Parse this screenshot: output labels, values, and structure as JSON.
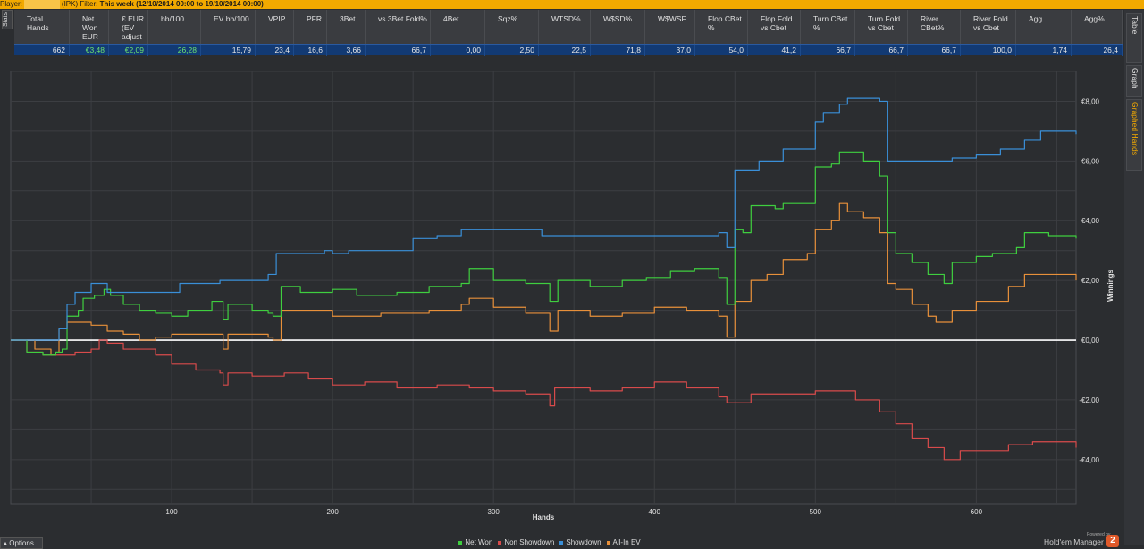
{
  "topbar": {
    "player_label": "Player:",
    "player_suffix": "(IPK)",
    "filter_label": "Filter:",
    "filter_value": "This week (12/10/2014 00:00 to 19/10/2014 00:00)"
  },
  "left_tab": {
    "label": "Stats"
  },
  "stats_table": {
    "columns": [
      {
        "label": "Total Hands",
        "value": "662"
      },
      {
        "label": "Net Won EUR",
        "value": "€3,48",
        "highlight": true
      },
      {
        "label": "€ EUR (EV adjust",
        "value": "€2,09",
        "highlight": true
      },
      {
        "label": "bb/100",
        "value": "26,28",
        "highlight": true
      },
      {
        "label": "EV bb/100",
        "value": "15,79"
      },
      {
        "label": "VPIP",
        "value": "23,4"
      },
      {
        "label": "PFR",
        "value": "16,6"
      },
      {
        "label": "3Bet",
        "value": "3,66"
      },
      {
        "label": "vs 3Bet Fold%",
        "value": "66,7"
      },
      {
        "label": "4Bet",
        "value": "0,00"
      },
      {
        "label": "Sqz%",
        "value": "2,50"
      },
      {
        "label": "WTSD%",
        "value": "22,5"
      },
      {
        "label": "W$SD%",
        "value": "71,8"
      },
      {
        "label": "W$WSF",
        "value": "37,0"
      },
      {
        "label": "Flop CBet %",
        "value": "54,0"
      },
      {
        "label": "Flop Fold vs Cbet",
        "value": "41,2"
      },
      {
        "label": "Turn CBet %",
        "value": "66,7"
      },
      {
        "label": "Turn Fold vs Cbet",
        "value": "66,7"
      },
      {
        "label": "River CBet%",
        "value": "66,7"
      },
      {
        "label": "River Fold vs Cbet",
        "value": "100,0"
      },
      {
        "label": "Agg",
        "value": "1,74"
      },
      {
        "label": "Agg%",
        "value": "26,4"
      }
    ]
  },
  "right_tabs": [
    {
      "label": "Table",
      "active": false
    },
    {
      "label": "Graph",
      "active": false
    },
    {
      "label": "Graphed Hands",
      "active": true
    }
  ],
  "footer": {
    "options_label": "Options",
    "powered_by": "Powered by",
    "brand_name": "Hold'em Manager",
    "brand_badge": "2"
  },
  "colors": {
    "net_won": "#3fcf3f",
    "non_showdown": "#d94b4b",
    "showdown": "#3a8fd8",
    "allin_ev": "#e8903a",
    "topbar": "#f2a900"
  },
  "chart_data": {
    "type": "line",
    "xlabel": "Hands",
    "ylabel": "Winnings",
    "xlim": [
      0,
      662
    ],
    "ylim": [
      -5.5,
      9
    ],
    "x_ticks": [
      100,
      200,
      300,
      400,
      500,
      600
    ],
    "y_ticks": [
      -4,
      -2,
      0,
      2,
      4,
      6,
      8
    ],
    "y_tick_labels": [
      "-€4,00",
      "-€2,00",
      "€0,00",
      "€2,00",
      "€4,00",
      "€6,00",
      "€8,00"
    ],
    "series": [
      {
        "name": "Net Won",
        "color": "#3fcf3f",
        "points": [
          [
            0,
            0
          ],
          [
            10,
            -0.4
          ],
          [
            20,
            -0.5
          ],
          [
            25,
            -0.5
          ],
          [
            28,
            -0.4
          ],
          [
            32,
            -0.3
          ],
          [
            35,
            0.8
          ],
          [
            42,
            1.0
          ],
          [
            45,
            1.4
          ],
          [
            52,
            1.5
          ],
          [
            58,
            1.7
          ],
          [
            62,
            1.5
          ],
          [
            70,
            1.2
          ],
          [
            80,
            1.0
          ],
          [
            90,
            0.9
          ],
          [
            100,
            0.8
          ],
          [
            110,
            1.0
          ],
          [
            125,
            1.3
          ],
          [
            132,
            0.7
          ],
          [
            135,
            1.2
          ],
          [
            150,
            1.0
          ],
          [
            160,
            0.9
          ],
          [
            163,
            0.8
          ],
          [
            168,
            1.8
          ],
          [
            180,
            1.6
          ],
          [
            200,
            1.7
          ],
          [
            215,
            1.5
          ],
          [
            240,
            1.6
          ],
          [
            260,
            1.8
          ],
          [
            280,
            1.9
          ],
          [
            285,
            2.4
          ],
          [
            300,
            2.0
          ],
          [
            320,
            1.9
          ],
          [
            335,
            1.3
          ],
          [
            340,
            2.0
          ],
          [
            360,
            1.8
          ],
          [
            380,
            2.0
          ],
          [
            395,
            2.1
          ],
          [
            410,
            2.3
          ],
          [
            425,
            2.4
          ],
          [
            440,
            2.1
          ],
          [
            445,
            1.2
          ],
          [
            450,
            3.7
          ],
          [
            455,
            3.6
          ],
          [
            460,
            4.5
          ],
          [
            475,
            4.4
          ],
          [
            480,
            4.6
          ],
          [
            495,
            4.6
          ],
          [
            500,
            5.8
          ],
          [
            510,
            5.9
          ],
          [
            515,
            6.3
          ],
          [
            530,
            6.0
          ],
          [
            540,
            5.5
          ],
          [
            545,
            3.6
          ],
          [
            550,
            2.9
          ],
          [
            560,
            2.6
          ],
          [
            570,
            2.2
          ],
          [
            580,
            1.9
          ],
          [
            585,
            2.6
          ],
          [
            600,
            2.8
          ],
          [
            610,
            2.9
          ],
          [
            625,
            3.1
          ],
          [
            630,
            3.6
          ],
          [
            645,
            3.5
          ],
          [
            662,
            3.4
          ]
        ]
      },
      {
        "name": "Non Showdown",
        "color": "#d94b4b",
        "points": [
          [
            0,
            0
          ],
          [
            10,
            -0.4
          ],
          [
            20,
            -0.5
          ],
          [
            30,
            -0.5
          ],
          [
            40,
            -0.4
          ],
          [
            50,
            -0.3
          ],
          [
            55,
            0.0
          ],
          [
            60,
            -0.1
          ],
          [
            70,
            -0.3
          ],
          [
            80,
            -0.3
          ],
          [
            90,
            -0.5
          ],
          [
            100,
            -0.8
          ],
          [
            115,
            -1.0
          ],
          [
            130,
            -1.1
          ],
          [
            132,
            -1.5
          ],
          [
            135,
            -1.1
          ],
          [
            150,
            -1.2
          ],
          [
            170,
            -1.1
          ],
          [
            185,
            -1.3
          ],
          [
            200,
            -1.5
          ],
          [
            220,
            -1.4
          ],
          [
            240,
            -1.6
          ],
          [
            265,
            -1.5
          ],
          [
            285,
            -1.6
          ],
          [
            300,
            -1.7
          ],
          [
            320,
            -1.8
          ],
          [
            335,
            -2.2
          ],
          [
            338,
            -1.6
          ],
          [
            360,
            -1.7
          ],
          [
            380,
            -1.6
          ],
          [
            400,
            -1.4
          ],
          [
            420,
            -1.6
          ],
          [
            440,
            -1.9
          ],
          [
            445,
            -2.1
          ],
          [
            460,
            -1.8
          ],
          [
            480,
            -1.8
          ],
          [
            500,
            -1.7
          ],
          [
            510,
            -1.7
          ],
          [
            525,
            -2.0
          ],
          [
            540,
            -2.4
          ],
          [
            550,
            -2.8
          ],
          [
            560,
            -3.3
          ],
          [
            570,
            -3.6
          ],
          [
            580,
            -4.0
          ],
          [
            590,
            -3.7
          ],
          [
            600,
            -3.7
          ],
          [
            620,
            -3.5
          ],
          [
            635,
            -3.4
          ],
          [
            650,
            -3.4
          ],
          [
            662,
            -3.6
          ]
        ]
      },
      {
        "name": "Showdown",
        "color": "#3a8fd8",
        "points": [
          [
            0,
            0
          ],
          [
            20,
            0
          ],
          [
            25,
            0
          ],
          [
            28,
            0.0
          ],
          [
            30,
            0.4
          ],
          [
            35,
            1.2
          ],
          [
            40,
            1.6
          ],
          [
            45,
            1.6
          ],
          [
            50,
            1.9
          ],
          [
            60,
            1.6
          ],
          [
            100,
            1.6
          ],
          [
            105,
            1.9
          ],
          [
            130,
            2.0
          ],
          [
            160,
            2.2
          ],
          [
            165,
            2.9
          ],
          [
            195,
            3.0
          ],
          [
            200,
            2.9
          ],
          [
            210,
            3.0
          ],
          [
            250,
            3.4
          ],
          [
            265,
            3.5
          ],
          [
            280,
            3.7
          ],
          [
            300,
            3.7
          ],
          [
            330,
            3.5
          ],
          [
            400,
            3.5
          ],
          [
            440,
            3.6
          ],
          [
            445,
            3.1
          ],
          [
            450,
            5.7
          ],
          [
            465,
            6.0
          ],
          [
            480,
            6.4
          ],
          [
            500,
            7.3
          ],
          [
            505,
            7.6
          ],
          [
            515,
            7.9
          ],
          [
            520,
            8.1
          ],
          [
            540,
            8.0
          ],
          [
            545,
            6.0
          ],
          [
            570,
            6.0
          ],
          [
            585,
            6.1
          ],
          [
            600,
            6.2
          ],
          [
            615,
            6.4
          ],
          [
            630,
            6.7
          ],
          [
            640,
            7.0
          ],
          [
            650,
            7.0
          ],
          [
            662,
            6.9
          ]
        ]
      },
      {
        "name": "All-In EV",
        "color": "#e8903a",
        "points": [
          [
            0,
            0
          ],
          [
            15,
            -0.3
          ],
          [
            25,
            -0.5
          ],
          [
            28,
            -0.4
          ],
          [
            30,
            0.4
          ],
          [
            35,
            0.6
          ],
          [
            50,
            0.5
          ],
          [
            60,
            0.3
          ],
          [
            70,
            0.2
          ],
          [
            80,
            0.0
          ],
          [
            90,
            0.1
          ],
          [
            100,
            0.2
          ],
          [
            125,
            0.2
          ],
          [
            132,
            -0.3
          ],
          [
            135,
            0.2
          ],
          [
            160,
            0.1
          ],
          [
            163,
            0.0
          ],
          [
            168,
            1.0
          ],
          [
            200,
            0.8
          ],
          [
            230,
            0.9
          ],
          [
            260,
            1.0
          ],
          [
            280,
            1.2
          ],
          [
            285,
            1.4
          ],
          [
            300,
            1.1
          ],
          [
            320,
            0.9
          ],
          [
            335,
            0.3
          ],
          [
            340,
            1.0
          ],
          [
            360,
            0.8
          ],
          [
            380,
            0.9
          ],
          [
            400,
            1.1
          ],
          [
            420,
            1.0
          ],
          [
            440,
            0.8
          ],
          [
            445,
            0.1
          ],
          [
            450,
            1.3
          ],
          [
            460,
            2.0
          ],
          [
            470,
            2.2
          ],
          [
            480,
            2.7
          ],
          [
            495,
            2.9
          ],
          [
            500,
            3.7
          ],
          [
            510,
            4.0
          ],
          [
            515,
            4.6
          ],
          [
            520,
            4.3
          ],
          [
            530,
            4.1
          ],
          [
            540,
            3.6
          ],
          [
            545,
            1.9
          ],
          [
            550,
            1.7
          ],
          [
            560,
            1.2
          ],
          [
            570,
            0.8
          ],
          [
            575,
            0.6
          ],
          [
            585,
            1.0
          ],
          [
            600,
            1.3
          ],
          [
            620,
            1.8
          ],
          [
            630,
            2.2
          ],
          [
            645,
            2.2
          ],
          [
            662,
            2.0
          ]
        ]
      }
    ]
  }
}
